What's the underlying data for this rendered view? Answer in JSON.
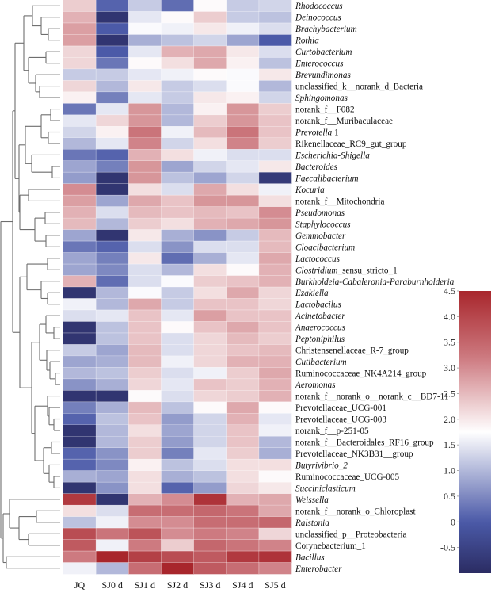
{
  "chart_data": {
    "type": "heatmap",
    "title": "",
    "xlabel": "",
    "ylabel": "",
    "columns": [
      "JQ",
      "SJ0 d",
      "SJ1 d",
      "SJ2 d",
      "SJ3 d",
      "SJ4 d",
      "SJ5 d"
    ],
    "rows": [
      {
        "label": "Rhodococcus",
        "italic": true,
        "values": [
          2.3,
          0.1,
          1.2,
          0.2,
          1.8,
          1.2,
          1.3
        ]
      },
      {
        "label": "Deinococcus",
        "italic": true,
        "values": [
          2.6,
          -0.8,
          1.5,
          1.8,
          2.3,
          1.2,
          1.1
        ]
      },
      {
        "label": "Brachybacterium",
        "italic": true,
        "values": [
          2.8,
          0.0,
          1.7,
          1.6,
          2.0,
          1.6,
          1.4
        ]
      },
      {
        "label": "Rothia",
        "italic": true,
        "values": [
          2.8,
          -0.8,
          0.9,
          1.1,
          1.3,
          0.8,
          0.0
        ]
      },
      {
        "label": "Curtobacterium",
        "italic": true,
        "values": [
          2.2,
          0.0,
          1.5,
          2.6,
          2.7,
          2.0,
          1.4
        ]
      },
      {
        "label": "Enterococcus",
        "italic": true,
        "values": [
          2.2,
          0.3,
          1.8,
          2.1,
          2.7,
          1.9,
          1.1
        ]
      },
      {
        "label": "Brevundimonas",
        "italic": true,
        "values": [
          1.2,
          1.2,
          1.5,
          1.6,
          1.8,
          1.7,
          2.0
        ]
      },
      {
        "label": "unclassified_k__norank_d_Bacteria",
        "italic": false,
        "values": [
          2.2,
          1.0,
          2.0,
          1.2,
          1.4,
          1.7,
          1.0
        ]
      },
      {
        "label": "Sphingomonas",
        "italic": true,
        "values": [
          1.9,
          0.4,
          1.5,
          1.2,
          2.0,
          1.9,
          1.3
        ]
      },
      {
        "label": "norank_f__F082",
        "italic": false,
        "values": [
          0.3,
          1.5,
          2.9,
          1.0,
          1.9,
          2.9,
          2.3
        ]
      },
      {
        "label": "norank_f__Muribaculaceae",
        "italic": false,
        "values": [
          1.5,
          2.2,
          2.9,
          1.0,
          2.3,
          2.9,
          2.4
        ]
      },
      {
        "label": "Prevotella 1",
        "italic": true,
        "italic_part": "Prevotella",
        "values": [
          1.3,
          1.9,
          3.3,
          1.6,
          2.5,
          3.3,
          2.4
        ]
      },
      {
        "label": "Rikenellaceae_RC9_gut_group",
        "italic": false,
        "values": [
          1.0,
          1.5,
          3.1,
          1.3,
          2.1,
          3.1,
          2.3
        ]
      },
      {
        "label": "Escherichia-Shigella",
        "italic": true,
        "values": [
          0.3,
          0.1,
          2.6,
          2.1,
          1.6,
          1.4,
          1.4
        ]
      },
      {
        "label": "Bacteroides",
        "italic": true,
        "values": [
          0.8,
          0.4,
          2.9,
          0.8,
          1.3,
          1.5,
          2.0
        ]
      },
      {
        "label": "Faecalibacterium",
        "italic": true,
        "values": [
          0.7,
          -0.8,
          2.9,
          1.1,
          0.8,
          1.3,
          -0.7
        ]
      },
      {
        "label": "Kocuria",
        "italic": true,
        "values": [
          3.0,
          -0.8,
          2.1,
          1.4,
          2.7,
          2.1,
          1.6
        ]
      },
      {
        "label": "norank_f__Mitochondria",
        "italic": false,
        "values": [
          2.8,
          0.8,
          2.7,
          2.4,
          2.9,
          2.9,
          2.1
        ]
      },
      {
        "label": "Pseudomonas",
        "italic": true,
        "values": [
          2.6,
          1.4,
          2.5,
          2.4,
          2.5,
          2.4,
          3.0
        ]
      },
      {
        "label": "Staphylococcus",
        "italic": true,
        "values": [
          2.5,
          1.0,
          2.3,
          2.1,
          2.6,
          2.7,
          2.9
        ]
      },
      {
        "label": "Gemmobacter",
        "italic": true,
        "values": [
          0.8,
          -0.8,
          2.0,
          0.9,
          0.6,
          1.2,
          2.5
        ]
      },
      {
        "label": "Cloacibacterium",
        "italic": true,
        "values": [
          0.3,
          0.1,
          1.4,
          0.6,
          1.4,
          1.4,
          2.5
        ]
      },
      {
        "label": "Lactococcus",
        "italic": true,
        "values": [
          0.8,
          0.4,
          2.0,
          0.2,
          0.9,
          1.5,
          2.7
        ]
      },
      {
        "label": "Clostridium_sensu_stricto_1",
        "italic": true,
        "italic_part": "Clostridium",
        "values": [
          0.8,
          0.5,
          1.4,
          1.0,
          2.1,
          1.8,
          2.6
        ]
      },
      {
        "label": "Burkholdeia-Cabaleronia-Paraburnholderia",
        "italic": true,
        "values": [
          2.6,
          0.2,
          1.4,
          1.7,
          2.3,
          2.4,
          2.6
        ]
      },
      {
        "label": "Ezakiella",
        "italic": true,
        "values": [
          -0.8,
          1.0,
          1.7,
          1.2,
          2.1,
          2.7,
          2.2
        ]
      },
      {
        "label": "Lactobacilus",
        "italic": true,
        "values": [
          1.6,
          1.0,
          2.7,
          1.2,
          2.4,
          2.4,
          2.2
        ]
      },
      {
        "label": "Acinetobacter",
        "italic": true,
        "values": [
          1.4,
          1.5,
          2.4,
          1.5,
          2.8,
          2.4,
          2.4
        ]
      },
      {
        "label": "Anaerococcus",
        "italic": true,
        "values": [
          -0.8,
          1.1,
          2.4,
          1.8,
          2.4,
          2.7,
          2.4
        ]
      },
      {
        "label": "Peptoniphilus",
        "italic": true,
        "values": [
          -0.8,
          1.1,
          2.4,
          1.4,
          2.2,
          2.5,
          2.3
        ]
      },
      {
        "label": "Christensenellaceae_R-7_group",
        "italic": false,
        "values": [
          1.2,
          0.8,
          2.5,
          1.4,
          2.2,
          2.4,
          2.5
        ]
      },
      {
        "label": "Cutibacterium",
        "italic": true,
        "values": [
          0.8,
          0.9,
          2.5,
          1.6,
          2.2,
          2.6,
          2.6
        ]
      },
      {
        "label": "Ruminococcaceae_NK4A214_group",
        "italic": false,
        "values": [
          1.0,
          1.1,
          2.3,
          1.4,
          1.6,
          2.3,
          2.7
        ]
      },
      {
        "label": "Aeromonas",
        "italic": true,
        "values": [
          0.6,
          0.9,
          2.2,
          1.5,
          2.4,
          2.3,
          2.6
        ]
      },
      {
        "label": "norank_f__norank_o__norank_c__BD7-11",
        "italic": false,
        "values": [
          -0.8,
          -0.8,
          1.8,
          1.4,
          2.2,
          2.3,
          2.6
        ]
      },
      {
        "label": "Prevotellaceae_UCG-001",
        "italic": false,
        "values": [
          0.4,
          0.9,
          2.5,
          1.1,
          1.8,
          2.7,
          1.8
        ]
      },
      {
        "label": "Prevotellaceae_UCG-003",
        "italic": false,
        "values": [
          0.1,
          1.1,
          2.4,
          0.7,
          1.3,
          2.6,
          1.5
        ]
      },
      {
        "label": "norank_f__p-251-05",
        "italic": false,
        "values": [
          -0.8,
          1.0,
          2.1,
          0.8,
          1.3,
          2.4,
          1.6
        ]
      },
      {
        "label": "norank_f__Bacteroidales_RF16_group",
        "italic": false,
        "values": [
          -0.8,
          1.0,
          2.3,
          0.7,
          1.3,
          2.4,
          1.0
        ]
      },
      {
        "label": "Prevotellaceae_NK3B31__group",
        "italic": false,
        "values": [
          0.1,
          0.6,
          2.3,
          0.4,
          1.5,
          2.3,
          0.9
        ]
      },
      {
        "label": "Butyrivibrio_2",
        "italic": true,
        "values": [
          0.1,
          0.5,
          1.9,
          1.1,
          1.4,
          2.1,
          2.1
        ]
      },
      {
        "label": "Ruminococcaceae_UCG-005",
        "italic": false,
        "values": [
          0.9,
          0.8,
          2.1,
          0.9,
          1.1,
          2.1,
          1.8
        ]
      },
      {
        "label": "Succiniclasticum",
        "italic": true,
        "values": [
          -0.8,
          0.6,
          2.1,
          0.1,
          0.7,
          2.2,
          2.0
        ]
      },
      {
        "label": "Weissella",
        "italic": true,
        "values": [
          4.2,
          -0.8,
          2.6,
          3.0,
          4.3,
          2.6,
          2.7
        ]
      },
      {
        "label": "norank_f__norank_o_Chloroplast",
        "italic": false,
        "values": [
          2.1,
          1.4,
          3.4,
          3.4,
          3.5,
          3.3,
          2.7
        ]
      },
      {
        "label": "Ralstonia",
        "italic": true,
        "values": [
          1.1,
          1.6,
          3.0,
          3.0,
          3.4,
          3.4,
          3.5
        ]
      },
      {
        "label": "unclassified_p__Proteobacteria",
        "italic": false,
        "values": [
          3.9,
          3.3,
          3.8,
          3.0,
          3.2,
          3.1,
          2.2
        ]
      },
      {
        "label": "Corynebacterium_1",
        "italic": false,
        "values": [
          3.7,
          1.6,
          3.2,
          2.3,
          3.5,
          3.3,
          3.1
        ]
      },
      {
        "label": "Bacillus",
        "italic": true,
        "values": [
          3.2,
          4.5,
          4.1,
          3.9,
          3.7,
          4.2,
          4.3
        ]
      },
      {
        "label": "Enterobacter",
        "italic": true,
        "values": [
          1.6,
          1.0,
          3.4,
          4.5,
          3.7,
          3.4,
          3.1
        ]
      }
    ],
    "colorbar": {
      "range": [
        -1.0,
        4.5
      ],
      "ticks": [
        "4.5",
        "4.0",
        "3.5",
        "3.0",
        "2.5",
        "2.0",
        "1.5",
        "1.0",
        "0.5",
        "0",
        "-0.5"
      ],
      "tick_values": [
        4.5,
        4.0,
        3.5,
        3.0,
        2.5,
        2.0,
        1.5,
        1.0,
        0.5,
        0,
        -0.5
      ],
      "colors": {
        "low": "#2b2c63",
        "lowmid": "#4b5aa8",
        "mid": "#ffffff",
        "highmid": "#cd7a80",
        "high": "#a8262c"
      },
      "mid_value": 1.75,
      "placement": "right"
    },
    "dendrogram": {
      "side": "left",
      "line_color": "#6e6e6e"
    }
  }
}
